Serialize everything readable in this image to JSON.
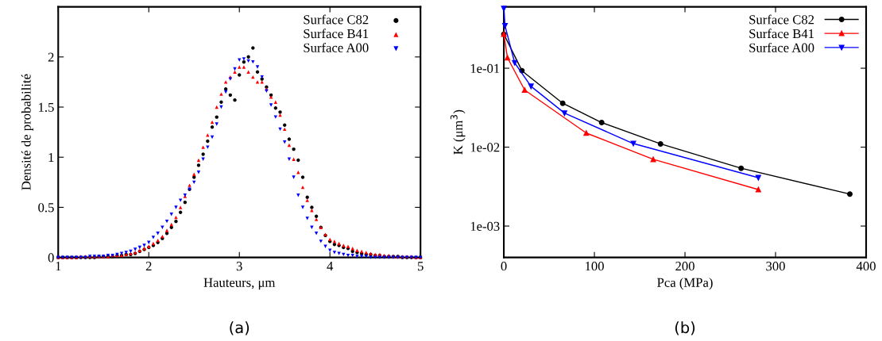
{
  "chart_data": [
    {
      "type": "scatter",
      "xlabel": "Hauteurs, μm",
      "ylabel": "Densité de probabilité",
      "xlim": [
        1,
        5
      ],
      "xticks": [
        1,
        2,
        3,
        4,
        5
      ],
      "ylim": [
        0,
        2.5
      ],
      "yticks": [
        0,
        0.5,
        1,
        1.5,
        2
      ],
      "legend": "top right",
      "grid": false,
      "annotations": [
        "(a)"
      ],
      "series": [
        {
          "name": "Surface C82",
          "color": "#000000",
          "marker": "circle",
          "x": [
            1.0,
            1.05,
            1.1,
            1.15,
            1.2,
            1.25,
            1.3,
            1.35,
            1.4,
            1.45,
            1.5,
            1.55,
            1.6,
            1.65,
            1.7,
            1.75,
            1.8,
            1.85,
            1.9,
            1.95,
            2.0,
            2.05,
            2.1,
            2.15,
            2.2,
            2.25,
            2.3,
            2.35,
            2.4,
            2.45,
            2.5,
            2.55,
            2.6,
            2.65,
            2.7,
            2.75,
            2.8,
            2.85,
            2.9,
            2.95,
            3.0,
            3.05,
            3.1,
            3.15,
            3.2,
            3.25,
            3.3,
            3.35,
            3.4,
            3.45,
            3.5,
            3.55,
            3.6,
            3.65,
            3.7,
            3.75,
            3.8,
            3.85,
            3.9,
            3.95,
            4.0,
            4.05,
            4.1,
            4.15,
            4.2,
            4.25,
            4.3,
            4.35,
            4.4,
            4.45,
            4.5,
            4.55,
            4.6,
            4.65,
            4.7,
            4.75,
            4.8,
            4.85,
            4.9,
            4.95,
            5.0
          ],
          "values": [
            0,
            0,
            0,
            0,
            0,
            0,
            0,
            0,
            0,
            0.01,
            0.01,
            0.01,
            0.01,
            0.02,
            0.02,
            0.03,
            0.03,
            0.04,
            0.06,
            0.08,
            0.1,
            0.12,
            0.15,
            0.19,
            0.24,
            0.3,
            0.36,
            0.45,
            0.55,
            0.68,
            0.8,
            0.92,
            1.03,
            1.16,
            1.3,
            1.4,
            1.55,
            1.68,
            1.62,
            1.57,
            1.82,
            1.95,
            2.0,
            2.09,
            1.85,
            1.78,
            1.7,
            1.62,
            1.49,
            1.45,
            1.32,
            1.18,
            1.08,
            0.97,
            0.8,
            0.6,
            0.5,
            0.41,
            0.3,
            0.22,
            0.16,
            0.13,
            0.12,
            0.1,
            0.09,
            0.06,
            0.05,
            0.04,
            0.03,
            0.03,
            0.02,
            0.02,
            0.01,
            0.01,
            0.01,
            0.01,
            0,
            0,
            0,
            0,
            0
          ]
        },
        {
          "name": "Surface B41",
          "color": "#ff0000",
          "marker": "triangle",
          "x": [
            1.0,
            1.05,
            1.1,
            1.15,
            1.2,
            1.25,
            1.3,
            1.35,
            1.4,
            1.45,
            1.5,
            1.55,
            1.6,
            1.65,
            1.7,
            1.75,
            1.8,
            1.85,
            1.9,
            1.95,
            2.0,
            2.05,
            2.1,
            2.15,
            2.2,
            2.25,
            2.3,
            2.35,
            2.4,
            2.45,
            2.5,
            2.55,
            2.6,
            2.65,
            2.7,
            2.75,
            2.8,
            2.85,
            2.9,
            2.95,
            3.0,
            3.05,
            3.1,
            3.15,
            3.2,
            3.25,
            3.3,
            3.35,
            3.4,
            3.45,
            3.5,
            3.55,
            3.6,
            3.65,
            3.7,
            3.75,
            3.8,
            3.85,
            3.9,
            3.95,
            4.0,
            4.05,
            4.1,
            4.15,
            4.2,
            4.25,
            4.3,
            4.35,
            4.4,
            4.45,
            4.5,
            4.55,
            4.6,
            4.65,
            4.7,
            4.75,
            4.8,
            4.85,
            4.9,
            4.95,
            5.0
          ],
          "values": [
            0,
            0,
            0,
            0,
            0,
            0.01,
            0.01,
            0.01,
            0.01,
            0.01,
            0.01,
            0.01,
            0.02,
            0.02,
            0.02,
            0.03,
            0.04,
            0.05,
            0.07,
            0.09,
            0.11,
            0.14,
            0.17,
            0.21,
            0.27,
            0.33,
            0.4,
            0.5,
            0.61,
            0.72,
            0.83,
            0.97,
            1.1,
            1.22,
            1.35,
            1.5,
            1.63,
            1.75,
            1.8,
            1.85,
            1.9,
            1.9,
            1.85,
            1.8,
            1.75,
            1.75,
            1.68,
            1.6,
            1.55,
            1.42,
            1.28,
            1.12,
            0.98,
            0.85,
            0.7,
            0.57,
            0.47,
            0.38,
            0.3,
            0.23,
            0.18,
            0.16,
            0.14,
            0.12,
            0.11,
            0.09,
            0.07,
            0.06,
            0.05,
            0.04,
            0.03,
            0.03,
            0.02,
            0.02,
            0.01,
            0.01,
            0.01,
            0.01,
            0.01,
            0,
            0
          ]
        },
        {
          "name": "Surface A00",
          "color": "#0000ff",
          "marker": "triangle_down",
          "x": [
            1.0,
            1.05,
            1.1,
            1.15,
            1.2,
            1.25,
            1.3,
            1.35,
            1.4,
            1.45,
            1.5,
            1.55,
            1.6,
            1.65,
            1.7,
            1.75,
            1.8,
            1.85,
            1.9,
            1.95,
            2.0,
            2.05,
            2.1,
            2.15,
            2.2,
            2.25,
            2.3,
            2.35,
            2.4,
            2.45,
            2.5,
            2.55,
            2.6,
            2.65,
            2.7,
            2.75,
            2.8,
            2.85,
            2.9,
            2.95,
            3.0,
            3.05,
            3.1,
            3.15,
            3.2,
            3.25,
            3.3,
            3.35,
            3.4,
            3.45,
            3.5,
            3.55,
            3.6,
            3.65,
            3.7,
            3.75,
            3.8,
            3.85,
            3.9,
            3.95,
            4.0,
            4.05,
            4.1,
            4.15,
            4.2,
            4.25,
            4.3,
            4.35,
            4.4,
            4.45,
            4.5,
            4.55,
            4.6,
            4.65,
            4.7,
            4.75,
            4.8,
            4.85,
            4.9,
            4.95,
            5.0
          ],
          "values": [
            0,
            0,
            0,
            0,
            0,
            0,
            0,
            0.01,
            0.01,
            0.01,
            0.01,
            0.02,
            0.02,
            0.03,
            0.04,
            0.05,
            0.06,
            0.08,
            0.1,
            0.12,
            0.15,
            0.2,
            0.24,
            0.3,
            0.36,
            0.43,
            0.5,
            0.57,
            0.62,
            0.68,
            0.75,
            0.85,
            0.98,
            1.1,
            1.2,
            1.33,
            1.5,
            1.65,
            1.78,
            1.88,
            1.97,
            1.98,
            1.96,
            1.95,
            1.9,
            1.8,
            1.66,
            1.52,
            1.4,
            1.28,
            1.15,
            0.98,
            0.8,
            0.62,
            0.5,
            0.39,
            0.3,
            0.24,
            0.16,
            0.11,
            0.07,
            0.05,
            0.04,
            0.03,
            0.02,
            0.02,
            0.01,
            0.01,
            0.01,
            0,
            0,
            0,
            0,
            0,
            0,
            0,
            0,
            0,
            0,
            0,
            0
          ]
        }
      ]
    },
    {
      "type": "line",
      "xlabel": "Pca (MPa)",
      "ylabel": "K (μm$^{3}$)",
      "log": "y",
      "xlim": [
        0,
        400
      ],
      "xticks": [
        0,
        100,
        200,
        300,
        400
      ],
      "ylim": [
        0.0004,
        0.6
      ],
      "yticks": [
        {
          "value": 0.1,
          "label": "1e-01"
        },
        {
          "value": 0.01,
          "label": "1e-02"
        },
        {
          "value": 0.001,
          "label": "1e-03"
        }
      ],
      "legend": "top right",
      "grid": false,
      "annotations": [
        "(b)"
      ],
      "series": [
        {
          "name": "Surface C82",
          "color": "#000000",
          "marker": "circle",
          "x": [
            0,
            20,
            65,
            108,
            173,
            262,
            382
          ],
          "values": [
            0.27,
            0.093,
            0.036,
            0.0205,
            0.011,
            0.0054,
            0.00254
          ]
        },
        {
          "name": "Surface B41",
          "color": "#ff0000",
          "marker": "triangle",
          "x": [
            0,
            4,
            23,
            91,
            165,
            281
          ],
          "values": [
            0.27,
            0.136,
            0.053,
            0.0151,
            0.007,
            0.0029
          ]
        },
        {
          "name": "Surface A00",
          "color": "#0000ff",
          "marker": "triangle_down",
          "x": [
            0,
            1.3,
            12,
            30,
            67,
            143,
            281
          ],
          "values": [
            0.57,
            0.345,
            0.117,
            0.059,
            0.027,
            0.0111,
            0.0041
          ]
        }
      ]
    }
  ]
}
